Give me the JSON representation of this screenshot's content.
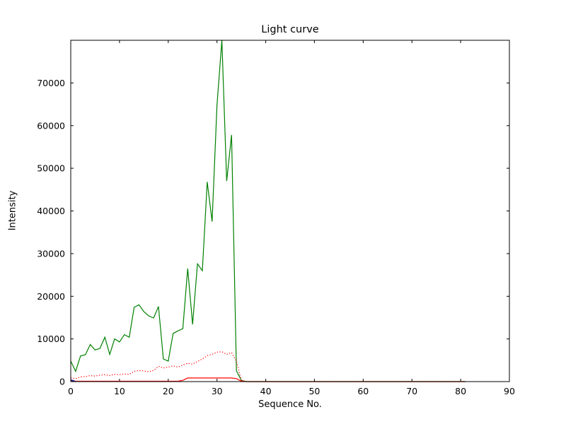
{
  "chart_data": {
    "type": "line",
    "title": "Light curve",
    "xlabel": "Sequence No.",
    "ylabel": "Intensity",
    "xlim": [
      0,
      90
    ],
    "ylim": [
      0,
      80000
    ],
    "xticks": [
      0,
      10,
      20,
      30,
      40,
      50,
      60,
      70,
      80,
      90
    ],
    "yticks": [
      0,
      10000,
      20000,
      30000,
      40000,
      50000,
      60000,
      70000
    ],
    "grid": false,
    "legend": null,
    "x": [
      0,
      1,
      2,
      3,
      4,
      5,
      6,
      7,
      8,
      9,
      10,
      11,
      12,
      13,
      14,
      15,
      16,
      17,
      18,
      19,
      20,
      21,
      22,
      23,
      24,
      25,
      26,
      27,
      28,
      29,
      30,
      31,
      32,
      33,
      34,
      35,
      36,
      37,
      38,
      39,
      40,
      41,
      42,
      43,
      44,
      45,
      46,
      47,
      48,
      49,
      50,
      51,
      52,
      53,
      54,
      55,
      56,
      57,
      58,
      59,
      60,
      61,
      62,
      63,
      64,
      65,
      66,
      67,
      68,
      69,
      70,
      71,
      72,
      73,
      74,
      75,
      76,
      77,
      78,
      79,
      80,
      81
    ],
    "series": [
      {
        "name": "green-solid",
        "color": "#008000",
        "style": "solid",
        "width": 1.2,
        "values": [
          4800,
          2400,
          6000,
          6300,
          8700,
          7400,
          7800,
          10400,
          6400,
          10000,
          9300,
          11000,
          10400,
          17400,
          18000,
          16400,
          15400,
          14900,
          17600,
          5300,
          4800,
          11300,
          11900,
          12400,
          26500,
          13400,
          27600,
          26000,
          46800,
          37500,
          64800,
          80000,
          47000,
          57800,
          2500,
          300,
          0,
          0,
          0,
          0,
          0,
          0,
          0,
          0,
          0,
          0,
          0,
          0,
          0,
          0,
          0,
          0,
          0,
          0,
          0,
          0,
          0,
          0,
          0,
          0,
          0,
          0,
          0,
          0,
          0,
          0,
          0,
          0,
          0,
          0,
          0,
          0,
          0,
          0,
          0,
          0,
          0,
          0,
          0,
          0,
          0,
          0
        ]
      },
      {
        "name": "red-dotted",
        "color": "#ff0000",
        "style": "dotted",
        "width": 1.2,
        "values": [
          900,
          700,
          1100,
          1200,
          1400,
          1300,
          1500,
          1600,
          1400,
          1700,
          1600,
          1800,
          1700,
          2400,
          2600,
          2500,
          2300,
          2600,
          3600,
          3200,
          3400,
          3700,
          3400,
          3900,
          4300,
          4100,
          4700,
          5300,
          6100,
          6400,
          6900,
          7000,
          6400,
          6800,
          4800,
          300,
          0,
          0,
          0,
          0,
          0,
          0,
          0,
          0,
          0,
          0,
          0,
          0,
          0,
          0,
          0,
          0,
          0,
          0,
          0,
          0,
          0,
          0,
          0,
          0,
          0,
          0,
          0,
          0,
          0,
          0,
          0,
          0,
          0,
          0,
          0,
          0,
          0,
          0,
          0,
          0,
          0,
          0,
          0,
          0,
          0,
          0
        ]
      },
      {
        "name": "red-solid",
        "color": "#ff0000",
        "style": "solid",
        "width": 1.2,
        "values": [
          80,
          80,
          80,
          80,
          80,
          80,
          80,
          80,
          80,
          80,
          80,
          80,
          80,
          80,
          80,
          80,
          80,
          80,
          80,
          80,
          80,
          80,
          80,
          300,
          850,
          850,
          850,
          850,
          850,
          850,
          850,
          850,
          850,
          850,
          700,
          100,
          0,
          0,
          0,
          0,
          0,
          0,
          0,
          0,
          0,
          0,
          0,
          0,
          0,
          0,
          0,
          0,
          0,
          0,
          0,
          0,
          0,
          0,
          0,
          0,
          0,
          0,
          0,
          0,
          0,
          0,
          0,
          0,
          0,
          0,
          0,
          0,
          0,
          0,
          0,
          0,
          0,
          0,
          0,
          0,
          0,
          0
        ]
      },
      {
        "name": "blue-solid",
        "color": "#00008b",
        "style": "solid",
        "width": 1.5,
        "x": [
          0,
          1
        ],
        "values": [
          400,
          0
        ]
      }
    ]
  }
}
